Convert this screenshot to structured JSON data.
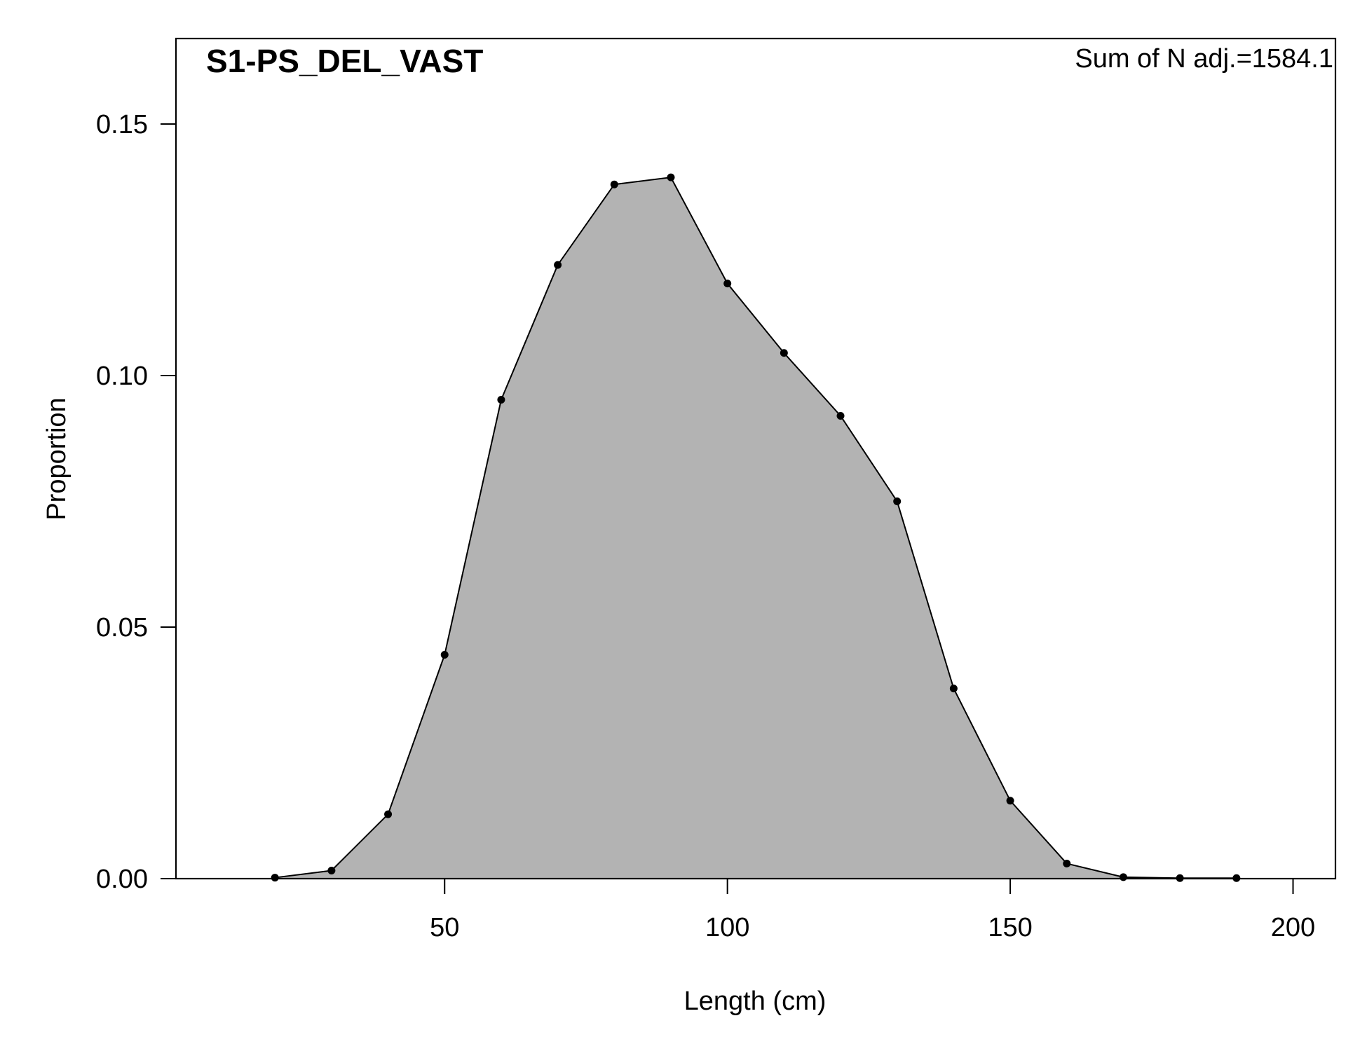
{
  "chart_data": {
    "type": "area",
    "title": "S1-PS_DEL_VAST",
    "annotation": "Sum of N adj.=1584.1",
    "xlabel": "Length (cm)",
    "ylabel": "Proportion",
    "xlim": [
      2.5,
      207.5
    ],
    "ylim": [
      0.0,
      0.167
    ],
    "x_ticks": [
      50,
      100,
      150,
      200
    ],
    "x_tick_labels": [
      "50",
      "100",
      "150",
      "200"
    ],
    "y_ticks": [
      0.0,
      0.05,
      0.1,
      0.15
    ],
    "y_tick_labels": [
      "0.00",
      "0.05",
      "0.10",
      "0.15"
    ],
    "grid": false,
    "legend": "none",
    "colors": {
      "fill": "#b3b3b3",
      "line": "#000000",
      "points": "#000000"
    },
    "series": [
      {
        "x": [
          20,
          30,
          40,
          50,
          60,
          70,
          80,
          90,
          100,
          110,
          120,
          130,
          140,
          150,
          160,
          170,
          180,
          190
        ],
        "values": [
          0.0002,
          0.0016,
          0.0128,
          0.0445,
          0.0952,
          0.122,
          0.138,
          0.1394,
          0.1183,
          0.1045,
          0.092,
          0.075,
          0.0378,
          0.0155,
          0.003,
          0.0003,
          0.0001,
          0.0001
        ]
      }
    ]
  }
}
